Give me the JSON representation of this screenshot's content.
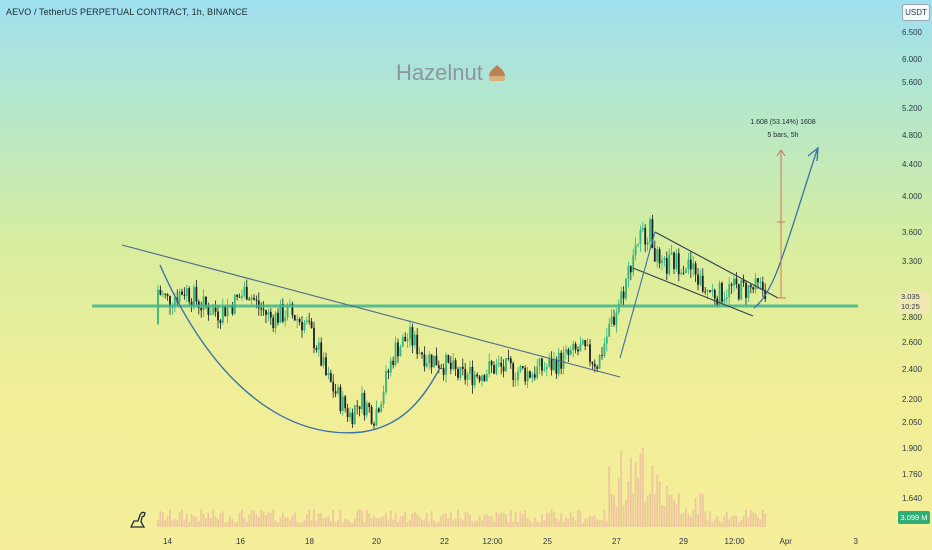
{
  "header": {
    "pair_title": "AEVO / TetherUS PERPETUAL CONTRACT, 1h, BINANCE",
    "currency": "USDT"
  },
  "watermark": {
    "brand": "Hazelnut",
    "icon": "hazelnut-icon"
  },
  "price_axis": {
    "labels": [
      "6.500",
      "6.000",
      "5.600",
      "5.200",
      "4.800",
      "4.400",
      "4.000",
      "3.600",
      "3.300",
      "2.800",
      "2.600",
      "2.400",
      "2.200",
      "2.050",
      "1.900",
      "1.760",
      "1.640"
    ],
    "current_price": "3.035",
    "countdown": "10:25",
    "volume_value": "3.099 M"
  },
  "time_axis": {
    "labels": [
      "14",
      "16",
      "18",
      "20",
      "22",
      "12:00",
      "25",
      "27",
      "29",
      "12:00",
      "Apr",
      "3"
    ]
  },
  "measure": {
    "line1": "1.608 (53.14%) 1608",
    "line2": "5 bars, 5h"
  },
  "colors": {
    "bull": "#2db67e",
    "bear": "#1a1f24",
    "support_line": "#3fb58a",
    "trend_line": "#4a6b8f",
    "cup_curve": "#3a72a8",
    "target_arrow": "#3a72a8",
    "measure_line": "#d0685a",
    "volume": "#e8a8a0"
  },
  "chart_data": {
    "type": "candlestick",
    "symbol": "AEVO/USDT",
    "timeframe": "1h",
    "exchange": "BINANCE",
    "series": [
      {
        "name": "price",
        "points": [
          [
            "13",
            2.75
          ],
          [
            "13.2",
            3.3
          ],
          [
            "13.5",
            3.15
          ],
          [
            "13.8",
            3.0
          ],
          [
            "14",
            2.95
          ],
          [
            "14.5",
            3.05
          ],
          [
            "15",
            2.9
          ],
          [
            "15.5",
            2.85
          ],
          [
            "16",
            2.95
          ],
          [
            "16.3",
            3.05
          ],
          [
            "16.6",
            2.9
          ],
          [
            "17",
            2.8
          ],
          [
            "17.5",
            2.85
          ],
          [
            "18",
            2.75
          ],
          [
            "18.3",
            2.6
          ],
          [
            "18.6",
            2.35
          ],
          [
            "19",
            2.2
          ],
          [
            "19.3",
            2.1
          ],
          [
            "19.6",
            2.2
          ],
          [
            "20",
            2.1
          ],
          [
            "20.3",
            2.3
          ],
          [
            "20.6",
            2.55
          ],
          [
            "21",
            2.65
          ],
          [
            "21.5",
            2.5
          ],
          [
            "22",
            2.45
          ],
          [
            "22.5",
            2.35
          ],
          [
            "23",
            2.38
          ],
          [
            "23.5",
            2.42
          ],
          [
            "24",
            2.4
          ],
          [
            "24.5",
            2.38
          ],
          [
            "25",
            2.42
          ],
          [
            "25.5",
            2.48
          ],
          [
            "26",
            2.55
          ],
          [
            "26.5",
            2.45
          ],
          [
            "27",
            2.85
          ],
          [
            "27.3",
            3.1
          ],
          [
            "27.6",
            3.5
          ],
          [
            "28",
            3.65
          ],
          [
            "28.3",
            3.2
          ],
          [
            "28.6",
            3.3
          ],
          [
            "29",
            3.3
          ],
          [
            "29.3",
            3.2
          ],
          [
            "29.6",
            3.05
          ],
          [
            "30",
            3.0
          ],
          [
            "30.3",
            3.05
          ]
        ]
      },
      {
        "name": "volume",
        "unit": "M"
      }
    ],
    "y_scale": "log",
    "ylim": [
      1.55,
      7.0
    ],
    "key_levels": {
      "support_resistance": 2.9
    },
    "annotations": [
      "cup",
      "descending trendline",
      "falling wedge",
      "target arrow"
    ]
  }
}
